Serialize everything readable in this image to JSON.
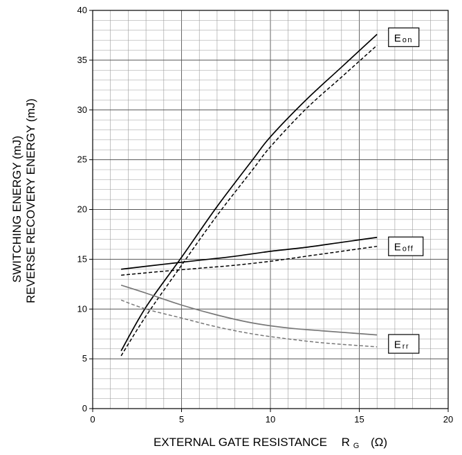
{
  "chart_data": {
    "type": "line",
    "xlabel": {
      "text": "EXTERNAL GATE RESISTANCE",
      "symbol": "R",
      "subscript": "G",
      "unit": "(Ω)"
    },
    "ylabel": {
      "line1": "SWITCHING ENERGY   (mJ)",
      "line2": "REVERSE RECOVERY ENERGY   (mJ)"
    },
    "xlim": [
      0,
      20
    ],
    "ylim": [
      0,
      40
    ],
    "x_ticks": [
      0,
      5,
      10,
      15,
      20
    ],
    "y_ticks": [
      0,
      5,
      10,
      15,
      20,
      25,
      30,
      35,
      40
    ],
    "grid": true,
    "series": [
      {
        "id": "eon-solid",
        "color": "#000000",
        "dash": "solid",
        "x": [
          1.6,
          3,
          5,
          7,
          9,
          10,
          12,
          14,
          16
        ],
        "y": [
          5.8,
          10.2,
          15.2,
          20.3,
          25.0,
          27.3,
          31.0,
          34.3,
          37.6
        ]
      },
      {
        "id": "eon-dashed",
        "color": "#000000",
        "dash": "dashed",
        "x": [
          1.6,
          3,
          5,
          7,
          9,
          10,
          12,
          14,
          16
        ],
        "y": [
          5.3,
          9.3,
          14.4,
          19.4,
          24.0,
          26.3,
          30.1,
          33.3,
          36.5
        ]
      },
      {
        "id": "eoff-solid",
        "color": "#000000",
        "dash": "solid",
        "x": [
          1.6,
          4,
          6,
          8,
          10,
          12,
          14,
          16
        ],
        "y": [
          14.0,
          14.5,
          14.9,
          15.3,
          15.8,
          16.2,
          16.7,
          17.2
        ]
      },
      {
        "id": "eoff-dashed",
        "color": "#000000",
        "dash": "dashed",
        "x": [
          1.6,
          4,
          6,
          8,
          10,
          12,
          14,
          16
        ],
        "y": [
          13.4,
          13.8,
          14.1,
          14.4,
          14.8,
          15.3,
          15.8,
          16.3
        ]
      },
      {
        "id": "err-solid",
        "color": "#777777",
        "dash": "solid",
        "x": [
          1.6,
          3,
          5,
          7,
          9,
          11,
          13,
          16
        ],
        "y": [
          12.4,
          11.6,
          10.4,
          9.4,
          8.6,
          8.1,
          7.8,
          7.4
        ]
      },
      {
        "id": "err-dashed",
        "color": "#777777",
        "dash": "dashed",
        "x": [
          1.6,
          3,
          5,
          7,
          9,
          11,
          13,
          16
        ],
        "y": [
          10.9,
          10.0,
          9.1,
          8.2,
          7.5,
          7.0,
          6.6,
          6.2
        ]
      }
    ],
    "annotations": [
      {
        "main": "E",
        "sub": "on",
        "x": 16.8,
        "y": 37.3
      },
      {
        "main": "E",
        "sub": "off",
        "x": 16.8,
        "y": 16.3
      },
      {
        "main": "E",
        "sub": "rr",
        "x": 16.8,
        "y": 6.5
      }
    ]
  }
}
